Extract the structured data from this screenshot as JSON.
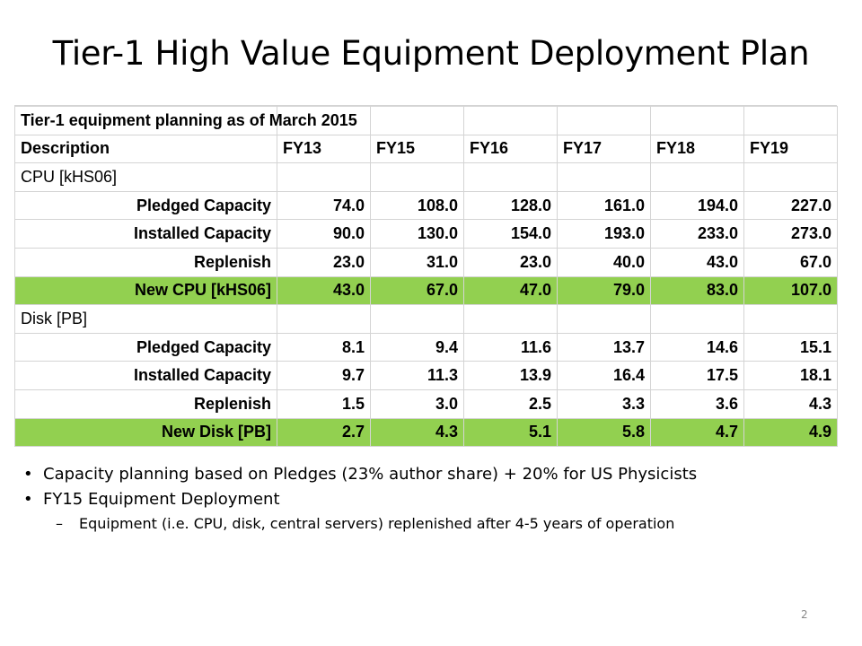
{
  "slide": {
    "title": "Tier-1 High Value Equipment Deployment Plan",
    "page_number": "2"
  },
  "table": {
    "caption": "Tier-1 equipment planning as of March 2015",
    "header": {
      "description": "Description",
      "years": [
        "FY13",
        "FY15",
        "FY16",
        "FY17",
        "FY18",
        "FY19"
      ]
    },
    "sections": [
      {
        "name": "CPU [kHS06]",
        "rows": [
          {
            "label": "Pledged Capacity",
            "values": [
              "74.0",
              "108.0",
              "128.0",
              "161.0",
              "194.0",
              "227.0"
            ]
          },
          {
            "label": "Installed Capacity",
            "values": [
              "90.0",
              "130.0",
              "154.0",
              "193.0",
              "233.0",
              "273.0"
            ]
          },
          {
            "label": "Replenish",
            "values": [
              "23.0",
              "31.0",
              "23.0",
              "40.0",
              "43.0",
              "67.0"
            ]
          },
          {
            "label": "New CPU [kHS06]",
            "values": [
              "43.0",
              "67.0",
              "47.0",
              "79.0",
              "83.0",
              "107.0"
            ]
          }
        ]
      },
      {
        "name": "Disk [PB]",
        "rows": [
          {
            "label": "Pledged Capacity",
            "values": [
              "8.1",
              "9.4",
              "11.6",
              "13.7",
              "14.6",
              "15.1"
            ]
          },
          {
            "label": "Installed Capacity",
            "values": [
              "9.7",
              "11.3",
              "13.9",
              "16.4",
              "17.5",
              "18.1"
            ]
          },
          {
            "label": "Replenish",
            "values": [
              "1.5",
              "3.0",
              "2.5",
              "3.3",
              "3.6",
              "4.3"
            ]
          },
          {
            "label": "New Disk [PB]",
            "values": [
              "2.7",
              "4.3",
              "5.1",
              "5.8",
              "4.7",
              "4.9"
            ]
          }
        ]
      }
    ],
    "highlight_color": "#92d050"
  },
  "bullets": [
    {
      "text": "Capacity planning based on Pledges (23% author share) + 20% for US Physicists"
    },
    {
      "text": "FY15 Equipment Deployment"
    }
  ],
  "sub_bullets": [
    {
      "text": "Equipment (i.e. CPU, disk, central servers) replenished after 4-5 years of operation"
    }
  ]
}
